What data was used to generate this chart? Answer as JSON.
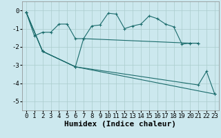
{
  "xlabel": "Humidex (Indice chaleur)",
  "background_color": "#cce8ee",
  "grid_color": "#aacccc",
  "line_color": "#1a6b6b",
  "xlim": [
    -0.5,
    23.5
  ],
  "ylim": [
    -5.5,
    0.5
  ],
  "yticks": [
    0,
    -1,
    -2,
    -3,
    -4,
    -5
  ],
  "xticks": [
    0,
    1,
    2,
    3,
    4,
    5,
    6,
    7,
    8,
    9,
    10,
    11,
    12,
    13,
    14,
    15,
    16,
    17,
    18,
    19,
    20,
    21,
    22,
    23
  ],
  "curve1_x": [
    0,
    1,
    2,
    3,
    4,
    5,
    6,
    7,
    8,
    9,
    10,
    11,
    12,
    13,
    14,
    15,
    16,
    17,
    18,
    19,
    20,
    21
  ],
  "curve1_y": [
    -0.1,
    -1.4,
    -1.2,
    -1.2,
    -0.75,
    -0.75,
    -1.55,
    -1.55,
    -0.85,
    -0.8,
    -0.15,
    -0.2,
    -1.0,
    -0.85,
    -0.75,
    -0.3,
    -0.45,
    -0.75,
    -0.9,
    -1.85,
    -1.8,
    -1.8
  ],
  "curve2_x": [
    0,
    2,
    6,
    7,
    20,
    21
  ],
  "curve2_y": [
    -0.1,
    -2.25,
    -3.1,
    -1.55,
    -1.8,
    -1.8
  ],
  "curve3_x": [
    0,
    2,
    6,
    23
  ],
  "curve3_y": [
    -0.1,
    -2.25,
    -3.1,
    -4.6
  ],
  "curve4_x": [
    0,
    2,
    6,
    21,
    22,
    23
  ],
  "curve4_y": [
    -0.1,
    -2.25,
    -3.1,
    -4.1,
    -3.35,
    -4.6
  ],
  "tick_fontsize": 6.5,
  "label_fontsize": 8
}
